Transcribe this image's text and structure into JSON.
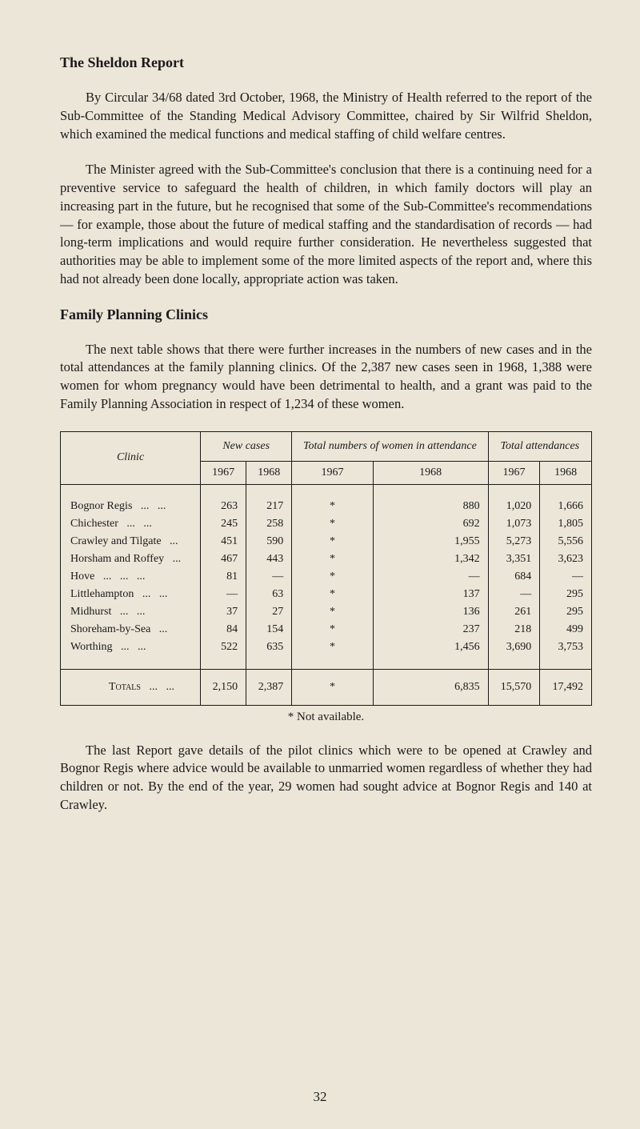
{
  "section1": {
    "heading": "The Sheldon Report",
    "para1": "By Circular 34/68 dated 3rd October, 1968, the Ministry of Health referred to the report of the Sub-Committee of the Standing Medical Advisory Committee, chaired by Sir Wilfrid Sheldon, which examined the medical functions and medical staffing of child welfare centres.",
    "para2": "The Minister agreed with the Sub-Committee's conclusion that there is a continuing need for a preventive service to safeguard the health of children, in which family doctors will play an increasing part in the future, but he recognised that some of the Sub-Committee's recommendations — for example, those about the future of medical staffing and the standardisation of records — had long-term implications and would require further consideration. He nevertheless suggested that authorities may be able to implement some of the more limited aspects of the report and, where this had not already been done locally, appropriate action was taken."
  },
  "section2": {
    "heading": "Family Planning Clinics",
    "para1": "The next table shows that there were further increases in the numbers of new cases and in the total attendances at the family planning clinics. Of the 2,387 new cases seen in 1968, 1,388 were women for whom pregnancy would have been detrimental to health, and a grant was paid to the Family Planning Association in respect of 1,234 of these women."
  },
  "table": {
    "head_clinic": "Clinic",
    "head_newcases": "New cases",
    "head_women": "Total numbers of women in attendance",
    "head_total": "Total attendances",
    "year_a": "1967",
    "year_b": "1968",
    "rows": [
      {
        "name": "Bognor Regis",
        "nc67": "263",
        "nc68": "217",
        "w67": "*",
        "w68": "880",
        "t67": "1,020",
        "t68": "1,666"
      },
      {
        "name": "Chichester",
        "nc67": "245",
        "nc68": "258",
        "w67": "*",
        "w68": "692",
        "t67": "1,073",
        "t68": "1,805"
      },
      {
        "name": "Crawley and Tilgate",
        "nc67": "451",
        "nc68": "590",
        "w67": "*",
        "w68": "1,955",
        "t67": "5,273",
        "t68": "5,556"
      },
      {
        "name": "Horsham and Roffey",
        "nc67": "467",
        "nc68": "443",
        "w67": "*",
        "w68": "1,342",
        "t67": "3,351",
        "t68": "3,623"
      },
      {
        "name": "Hove",
        "nc67": "81",
        "nc68": "—",
        "w67": "*",
        "w68": "—",
        "t67": "684",
        "t68": "—"
      },
      {
        "name": "Littlehampton",
        "nc67": "—",
        "nc68": "63",
        "w67": "*",
        "w68": "137",
        "t67": "—",
        "t68": "295"
      },
      {
        "name": "Midhurst",
        "nc67": "37",
        "nc68": "27",
        "w67": "*",
        "w68": "136",
        "t67": "261",
        "t68": "295"
      },
      {
        "name": "Shoreham-by-Sea",
        "nc67": "84",
        "nc68": "154",
        "w67": "*",
        "w68": "237",
        "t67": "218",
        "t68": "499"
      },
      {
        "name": "Worthing",
        "nc67": "522",
        "nc68": "635",
        "w67": "*",
        "w68": "1,456",
        "t67": "3,690",
        "t68": "3,753"
      }
    ],
    "totals": {
      "label": "Totals",
      "nc67": "2,150",
      "nc68": "2,387",
      "w67": "*",
      "w68": "6,835",
      "t67": "15,570",
      "t68": "17,492"
    }
  },
  "footnote": "* Not available.",
  "closing_para": "The last Report gave details of the pilot clinics which were to be opened at Crawley and Bognor Regis where advice would be available to unmarried women regardless of whether they had children or not. By the end of the year, 29 women had sought advice at Bognor Regis and 140 at Crawley.",
  "page_number": "32"
}
